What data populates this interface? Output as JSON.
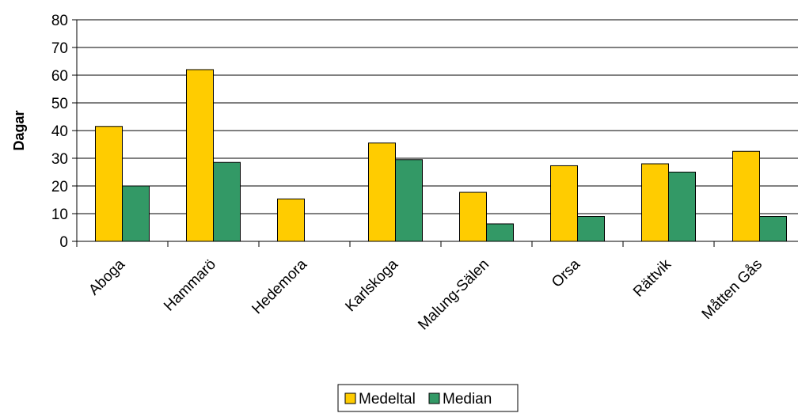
{
  "chart_data": {
    "type": "bar",
    "ylabel": "Dagar",
    "ylim": [
      0,
      80
    ],
    "yticks": [
      0,
      10,
      20,
      30,
      40,
      50,
      60,
      70,
      80
    ],
    "categories": [
      "Aboga",
      "Hammarö",
      "Hedemora",
      "Karlskoga",
      "Malung-Sälen",
      "Orsa",
      "Rättvik",
      "Måtten Gås"
    ],
    "series": [
      {
        "name": "Medeltal",
        "color": "#FFCC00",
        "values": [
          41.5,
          62,
          15.3,
          35.5,
          17.7,
          27.3,
          28,
          32.5
        ]
      },
      {
        "name": "Median",
        "color": "#339966",
        "values": [
          20,
          28.5,
          0,
          29.5,
          6.3,
          9,
          25,
          9
        ]
      }
    ],
    "grid": true,
    "legend_position": "bottom"
  }
}
